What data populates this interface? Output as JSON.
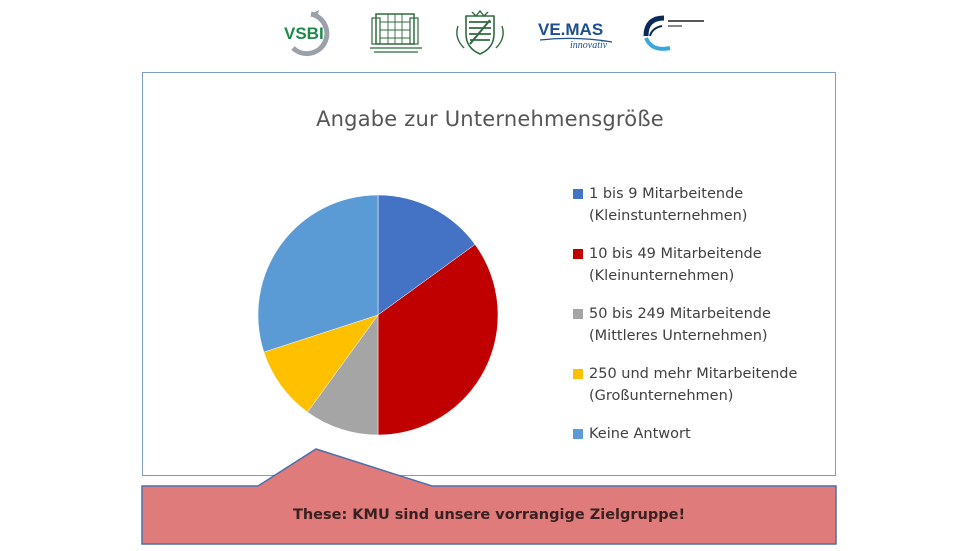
{
  "logos": {
    "vsbi_text": "VSBI",
    "vemas_text": "VE.MAS",
    "vemas_tagline": "innovativ"
  },
  "chart_data": {
    "type": "pie",
    "title": "Angabe zur Unternehmensgröße",
    "legend_placement": "right",
    "start_angle_deg": 0,
    "direction": "clockwise",
    "slices": [
      {
        "label_line1": "1 bis 9 Mitarbeitende",
        "label_line2": "(Kleinstunternehmen)",
        "value": 15,
        "color": "#4472c4"
      },
      {
        "label_line1": "10 bis 49 Mitarbeitende",
        "label_line2": "(Kleinunternehmen)",
        "value": 35,
        "color": "#c00000"
      },
      {
        "label_line1": "50 bis 249 Mitarbeitende",
        "label_line2": "(Mittleres Unternehmen)",
        "value": 10,
        "color": "#a5a5a5"
      },
      {
        "label_line1": "250 und mehr Mitarbeitende",
        "label_line2": "(Großunternehmen)",
        "value": 10,
        "color": "#ffc000"
      },
      {
        "label_line1": "Keine Antwort",
        "label_line2": "",
        "value": 30,
        "color": "#5b9bd5"
      }
    ]
  },
  "callout": {
    "text": "These: KMU sind unsere vorrangige Zielgruppe!",
    "fill": "#e07b7b",
    "stroke": "#4f6fa8"
  }
}
